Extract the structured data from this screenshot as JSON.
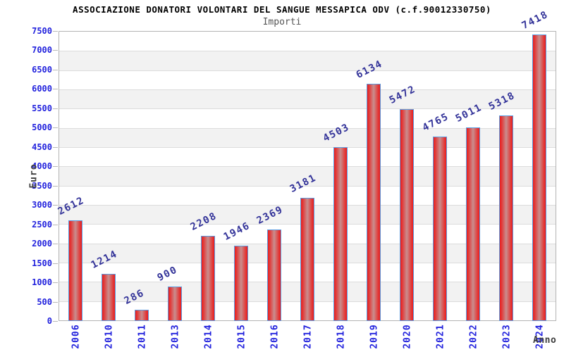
{
  "chart_data": {
    "type": "bar",
    "title": "ASSOCIAZIONE DONATORI VOLONTARI DEL SANGUE MESSAPICA ODV (c.f.90012330750)",
    "subtitle": "Importi",
    "xlabel": "Anno",
    "ylabel": "Euro",
    "categories": [
      "2006",
      "2010",
      "2011",
      "2013",
      "2014",
      "2015",
      "2016",
      "2017",
      "2018",
      "2019",
      "2020",
      "2021",
      "2022",
      "2023",
      "2024"
    ],
    "values": [
      2612,
      1214,
      286,
      900,
      2208,
      1946,
      2369,
      3181,
      4503,
      6134,
      5472,
      4765,
      5011,
      5318,
      7418
    ],
    "bar_value_labels": [
      "2612",
      "1214",
      "286",
      "900",
      "2208",
      "1946",
      "2369",
      "3181",
      "4503",
      "6134",
      "5472",
      "4765",
      "5011",
      "5318",
      "7418"
    ],
    "ylim": [
      0,
      7500
    ],
    "ytick_step": 500,
    "grid": true,
    "band_striping": "alternating horizontal 500-unit bands, white and light gray",
    "legend_position": "none",
    "colors": {
      "title": "#000000",
      "subtitle": "#555555",
      "axis_title": "#3d3d3d",
      "axis_tick_label": "#2222dd",
      "bar_value_label": "#333399",
      "bar_border": "#5b9ce0",
      "bar_fill_edge": "#ea1c1c",
      "bar_fill_inner": "#e13b3a",
      "bar_fill_mid": "#c98e8e",
      "band_alt": "#f2f2f2",
      "gridline": "#dcdcdc",
      "plot_border": "#b4b4b4",
      "tick_mark": "#b8b8b8",
      "background": "#ffffff"
    }
  }
}
